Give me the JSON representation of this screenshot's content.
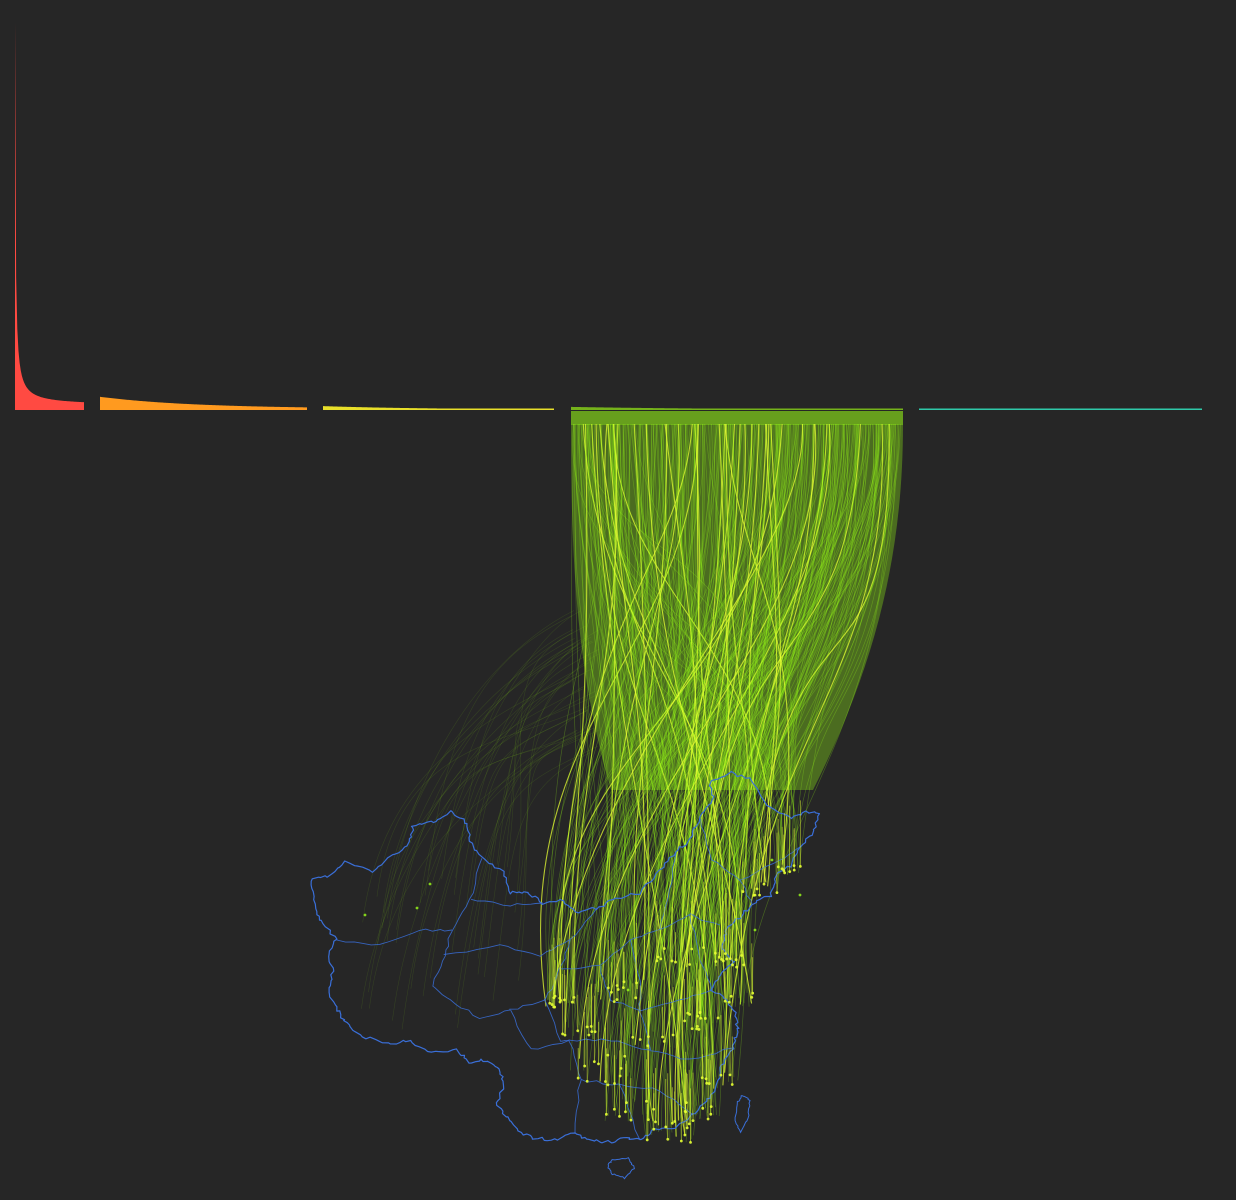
{
  "colors": {
    "background": "#262626",
    "map_outline": "#3a6fd8",
    "flow_line": "#9cff1a",
    "flow_highlight": "#e6ff33",
    "band_fill": "#6aa51c"
  },
  "chart_data": {
    "type": "bar",
    "description_kind": "ranked distribution by color group",
    "groups": [
      {
        "color": "#ff4a42",
        "count": 60,
        "max_value": 100,
        "decay": 0.06
      },
      {
        "color": "#ff9a1f",
        "count": 180,
        "max_value": 3.4,
        "decay": 0.012
      },
      {
        "color": "#e8df2a",
        "count": 200,
        "max_value": 1.0,
        "decay": 0.01
      },
      {
        "color": "#7ec21b",
        "count": 290,
        "max_value": 0.8,
        "decay": 0.01,
        "selected": true
      },
      {
        "color": "#2fc9a9",
        "count": 250,
        "max_value": 0.3,
        "decay": 0.01
      }
    ]
  },
  "map": {
    "region": "China",
    "outline_icon": "china-province-boundaries-icon"
  },
  "flows": {
    "count": 420,
    "source_group": 3
  }
}
